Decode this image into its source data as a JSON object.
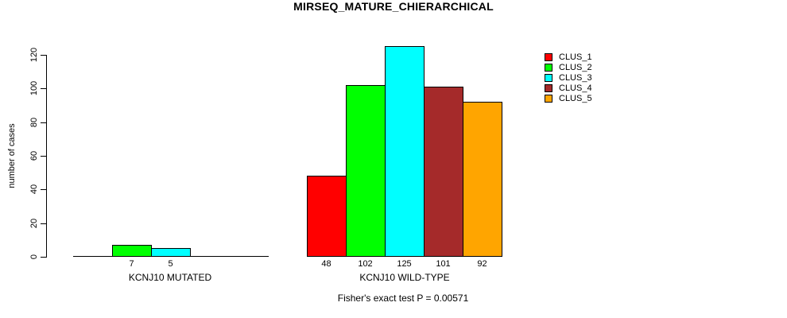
{
  "chart_data": {
    "type": "bar",
    "title": "MIRSEQ_MATURE_CHIERARCHICAL",
    "ylabel": "number of cases",
    "subtitle": "Fisher's exact test P = 0.00571",
    "categories": [
      "KCNJ10 MUTATED",
      "KCNJ10 WILD-TYPE"
    ],
    "series": [
      {
        "name": "CLUS_1",
        "color": "#FF0000",
        "values": [
          0,
          48
        ]
      },
      {
        "name": "CLUS_2",
        "color": "#00FF00",
        "values": [
          7,
          102
        ]
      },
      {
        "name": "CLUS_3",
        "color": "#00FFFF",
        "values": [
          5,
          125
        ]
      },
      {
        "name": "CLUS_4",
        "color": "#A52A2A",
        "values": [
          0,
          101
        ]
      },
      {
        "name": "CLUS_5",
        "color": "#FFA500",
        "values": [
          0,
          92
        ]
      }
    ],
    "bar_value_labels": {
      "KCNJ10 MUTATED": [
        "7",
        "5"
      ],
      "KCNJ10 WILD-TYPE": [
        "48",
        "102",
        "125",
        "101",
        "92"
      ]
    },
    "show_zero_value_labels": false,
    "yticks": [
      0,
      20,
      40,
      60,
      80,
      100,
      120
    ],
    "ylim": [
      0,
      125
    ],
    "grid": false,
    "legend_position": "right",
    "axis_color": "#000000",
    "text_color": "#000000",
    "background_color": "#FFFFFF"
  }
}
